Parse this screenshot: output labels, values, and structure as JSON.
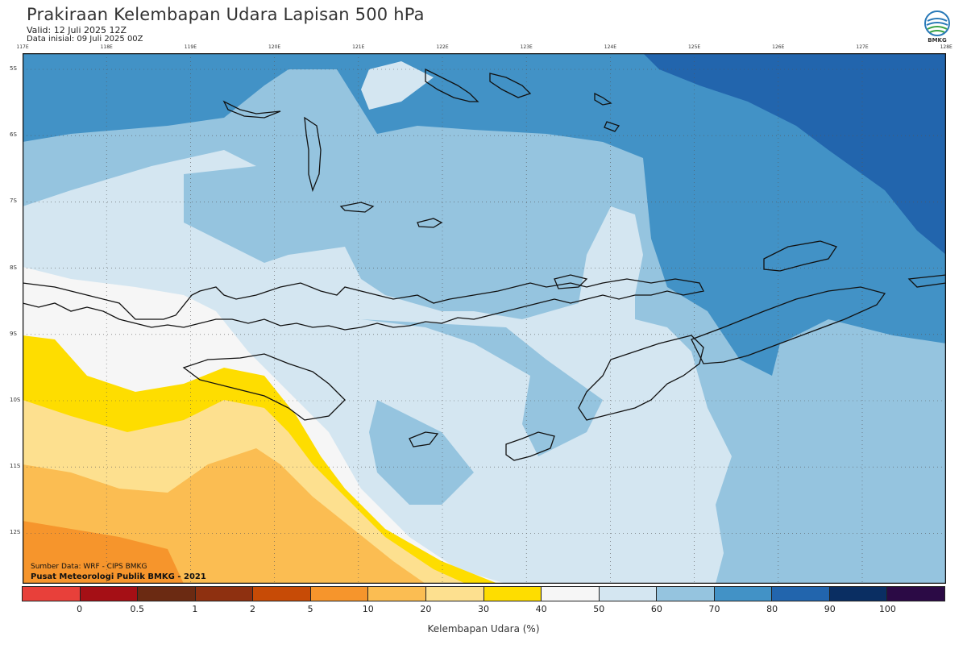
{
  "header": {
    "title": "Prakiraan Kelembapan Udara Lapisan 500 hPa",
    "valid": "Valid: 12 Juli 2025 12Z",
    "init": "Data inisial: 09 Juli 2025 00Z",
    "logo_text": "BMKG"
  },
  "axes": {
    "longitudes": [
      "117E",
      "118E",
      "119E",
      "120E",
      "121E",
      "122E",
      "123E",
      "124E",
      "125E",
      "126E",
      "127E",
      "128E"
    ],
    "latitudes": [
      "5S",
      "6S",
      "7S",
      "8S",
      "9S",
      "10S",
      "11S",
      "12S"
    ]
  },
  "footer": {
    "source": "Sumber Data: WRF - CIPS BMKG",
    "credit": "Pusat Meteorologi Publik BMKG - 2021"
  },
  "colorbar": {
    "title": "Kelembapan Udara (%)",
    "ticks": [
      "0",
      "0.5",
      "1",
      "2",
      "5",
      "10",
      "20",
      "30",
      "40",
      "50",
      "60",
      "70",
      "80",
      "90",
      "100"
    ],
    "colors": [
      "#e8403a",
      "#a50f15",
      "#6b2a12",
      "#8e3010",
      "#c74b06",
      "#f6952c",
      "#fbbd52",
      "#fde08f",
      "#fedd00",
      "#f6f6f6",
      "#d4e6f1",
      "#95c4df",
      "#4292c6",
      "#2265ad",
      "#0a2e62",
      "#2b0a45"
    ]
  },
  "map_colors": {
    "yellow": "#fedd00",
    "light_orange": "#fde08f",
    "orange": "#fbbd52",
    "dark_orange": "#f6952c",
    "white": "#f6f6f6",
    "pale_blue": "#d4e6f1",
    "light_blue": "#95c4df",
    "medium_blue": "#4292c6",
    "dark_blue": "#2265ad",
    "coastline": "#111111",
    "grid": "#555555"
  }
}
